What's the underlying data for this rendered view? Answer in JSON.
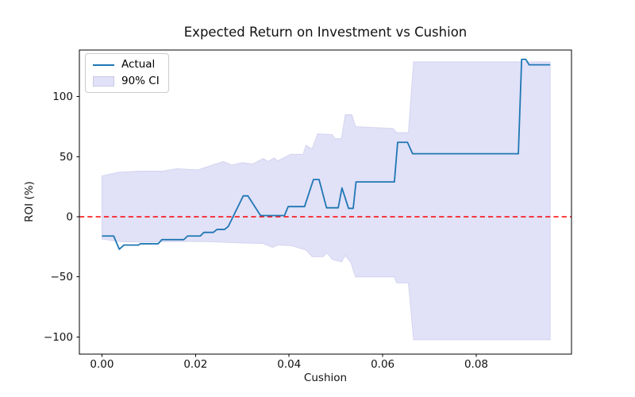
{
  "figure": {
    "title": "Expected Return on Investment vs Cushion",
    "xlabel": "Cushion",
    "ylabel": "ROI (%)"
  },
  "legend": {
    "items": [
      {
        "label": "Actual",
        "type": "line",
        "color": "#1f77b4"
      },
      {
        "label": "90% CI",
        "type": "patch",
        "color": "#e1e1f7"
      }
    ]
  },
  "chart_data": {
    "type": "line",
    "title": "Expected Return on Investment vs Cushion",
    "xlabel": "Cushion",
    "ylabel": "ROI (%)",
    "xlim": [
      -0.00483,
      0.10036
    ],
    "ylim": [
      -114.3,
      138.8
    ],
    "grid": false,
    "legend_position": "upper left",
    "x_ticks": [
      {
        "value": 0.0,
        "label": "0.00"
      },
      {
        "value": 0.02,
        "label": "0.02"
      },
      {
        "value": 0.04,
        "label": "0.04"
      },
      {
        "value": 0.06,
        "label": "0.06"
      },
      {
        "value": 0.08,
        "label": "0.08"
      }
    ],
    "y_ticks": [
      {
        "value": -100,
        "label": "−100"
      },
      {
        "value": -50,
        "label": "−50"
      },
      {
        "value": 0,
        "label": "0"
      },
      {
        "value": 50,
        "label": "50"
      },
      {
        "value": 100,
        "label": "100"
      }
    ],
    "zero_line": {
      "y": 0,
      "color": "#ff0000",
      "style": "dashed"
    },
    "series": [
      {
        "name": "90% CI",
        "type": "band",
        "fill": "#e1e1f7",
        "edge": "#d4d4f0",
        "upper": [
          [
            0.0,
            34.0
          ],
          [
            0.0035,
            37.0
          ],
          [
            0.008,
            38.0
          ],
          [
            0.013,
            38.0
          ],
          [
            0.016,
            40.0
          ],
          [
            0.0205,
            39.0
          ],
          [
            0.0243,
            44.0
          ],
          [
            0.026,
            46.0
          ],
          [
            0.0277,
            43.0
          ],
          [
            0.03,
            45.0
          ],
          [
            0.0322,
            44.0
          ],
          [
            0.0345,
            48.5
          ],
          [
            0.0355,
            46.0
          ],
          [
            0.0368,
            49.0
          ],
          [
            0.0376,
            46.5
          ],
          [
            0.0403,
            52.0
          ],
          [
            0.043,
            52.0
          ],
          [
            0.0436,
            59.5
          ],
          [
            0.0449,
            56.5
          ],
          [
            0.0461,
            69.0
          ],
          [
            0.0492,
            68.4
          ],
          [
            0.0498,
            65.0
          ],
          [
            0.0512,
            65.0
          ],
          [
            0.052,
            85.0
          ],
          [
            0.0534,
            85.0
          ],
          [
            0.0542,
            75.0
          ],
          [
            0.0622,
            73.5
          ],
          [
            0.063,
            70.0
          ],
          [
            0.0655,
            70.0
          ],
          [
            0.0666,
            129.0
          ],
          [
            0.0958,
            129.0
          ]
        ],
        "lower": [
          [
            0.0,
            -18.5
          ],
          [
            0.004,
            -20.7
          ],
          [
            0.008,
            -21.0
          ],
          [
            0.019,
            -20.5
          ],
          [
            0.023,
            -20.7
          ],
          [
            0.03,
            -21.8
          ],
          [
            0.0344,
            -22.2
          ],
          [
            0.0365,
            -25.5
          ],
          [
            0.0375,
            -23.5
          ],
          [
            0.0405,
            -24.0
          ],
          [
            0.0436,
            -27.7
          ],
          [
            0.0449,
            -33.2
          ],
          [
            0.0473,
            -33.2
          ],
          [
            0.0481,
            -29.9
          ],
          [
            0.0492,
            -35.4
          ],
          [
            0.0512,
            -37.6
          ],
          [
            0.052,
            -32.2
          ],
          [
            0.0532,
            -38.0
          ],
          [
            0.0537,
            -44.2
          ],
          [
            0.0542,
            -50.0
          ],
          [
            0.0625,
            -50.0
          ],
          [
            0.063,
            -55.0
          ],
          [
            0.0655,
            -55.0
          ],
          [
            0.0666,
            -102.3
          ],
          [
            0.0958,
            -102.3
          ]
        ]
      },
      {
        "name": "Actual",
        "type": "line",
        "color": "#1f77b4",
        "points": [
          [
            0.0,
            -16.0
          ],
          [
            0.0025,
            -16.0
          ],
          [
            0.0037,
            -27.0
          ],
          [
            0.0047,
            -23.5
          ],
          [
            0.0078,
            -23.5
          ],
          [
            0.0082,
            -22.5
          ],
          [
            0.012,
            -22.5
          ],
          [
            0.0128,
            -19.0
          ],
          [
            0.0175,
            -19.0
          ],
          [
            0.0183,
            -16.0
          ],
          [
            0.021,
            -16.0
          ],
          [
            0.0218,
            -13.0
          ],
          [
            0.0238,
            -13.0
          ],
          [
            0.0246,
            -10.5
          ],
          [
            0.0262,
            -10.5
          ],
          [
            0.027,
            -8.0
          ],
          [
            0.0302,
            17.4
          ],
          [
            0.0312,
            17.4
          ],
          [
            0.0339,
            1.0
          ],
          [
            0.039,
            1.0
          ],
          [
            0.0398,
            8.5
          ],
          [
            0.0433,
            8.5
          ],
          [
            0.0452,
            31.0
          ],
          [
            0.0464,
            31.0
          ],
          [
            0.048,
            7.5
          ],
          [
            0.0505,
            7.5
          ],
          [
            0.0513,
            24.0
          ],
          [
            0.0527,
            7.0
          ],
          [
            0.0537,
            7.0
          ],
          [
            0.0543,
            29.0
          ],
          [
            0.0625,
            29.0
          ],
          [
            0.0632,
            62.0
          ],
          [
            0.0653,
            62.0
          ],
          [
            0.0664,
            52.5
          ],
          [
            0.089,
            52.5
          ],
          [
            0.0897,
            131.0
          ],
          [
            0.0906,
            131.0
          ],
          [
            0.0913,
            126.5
          ],
          [
            0.0958,
            126.5
          ]
        ]
      }
    ]
  }
}
